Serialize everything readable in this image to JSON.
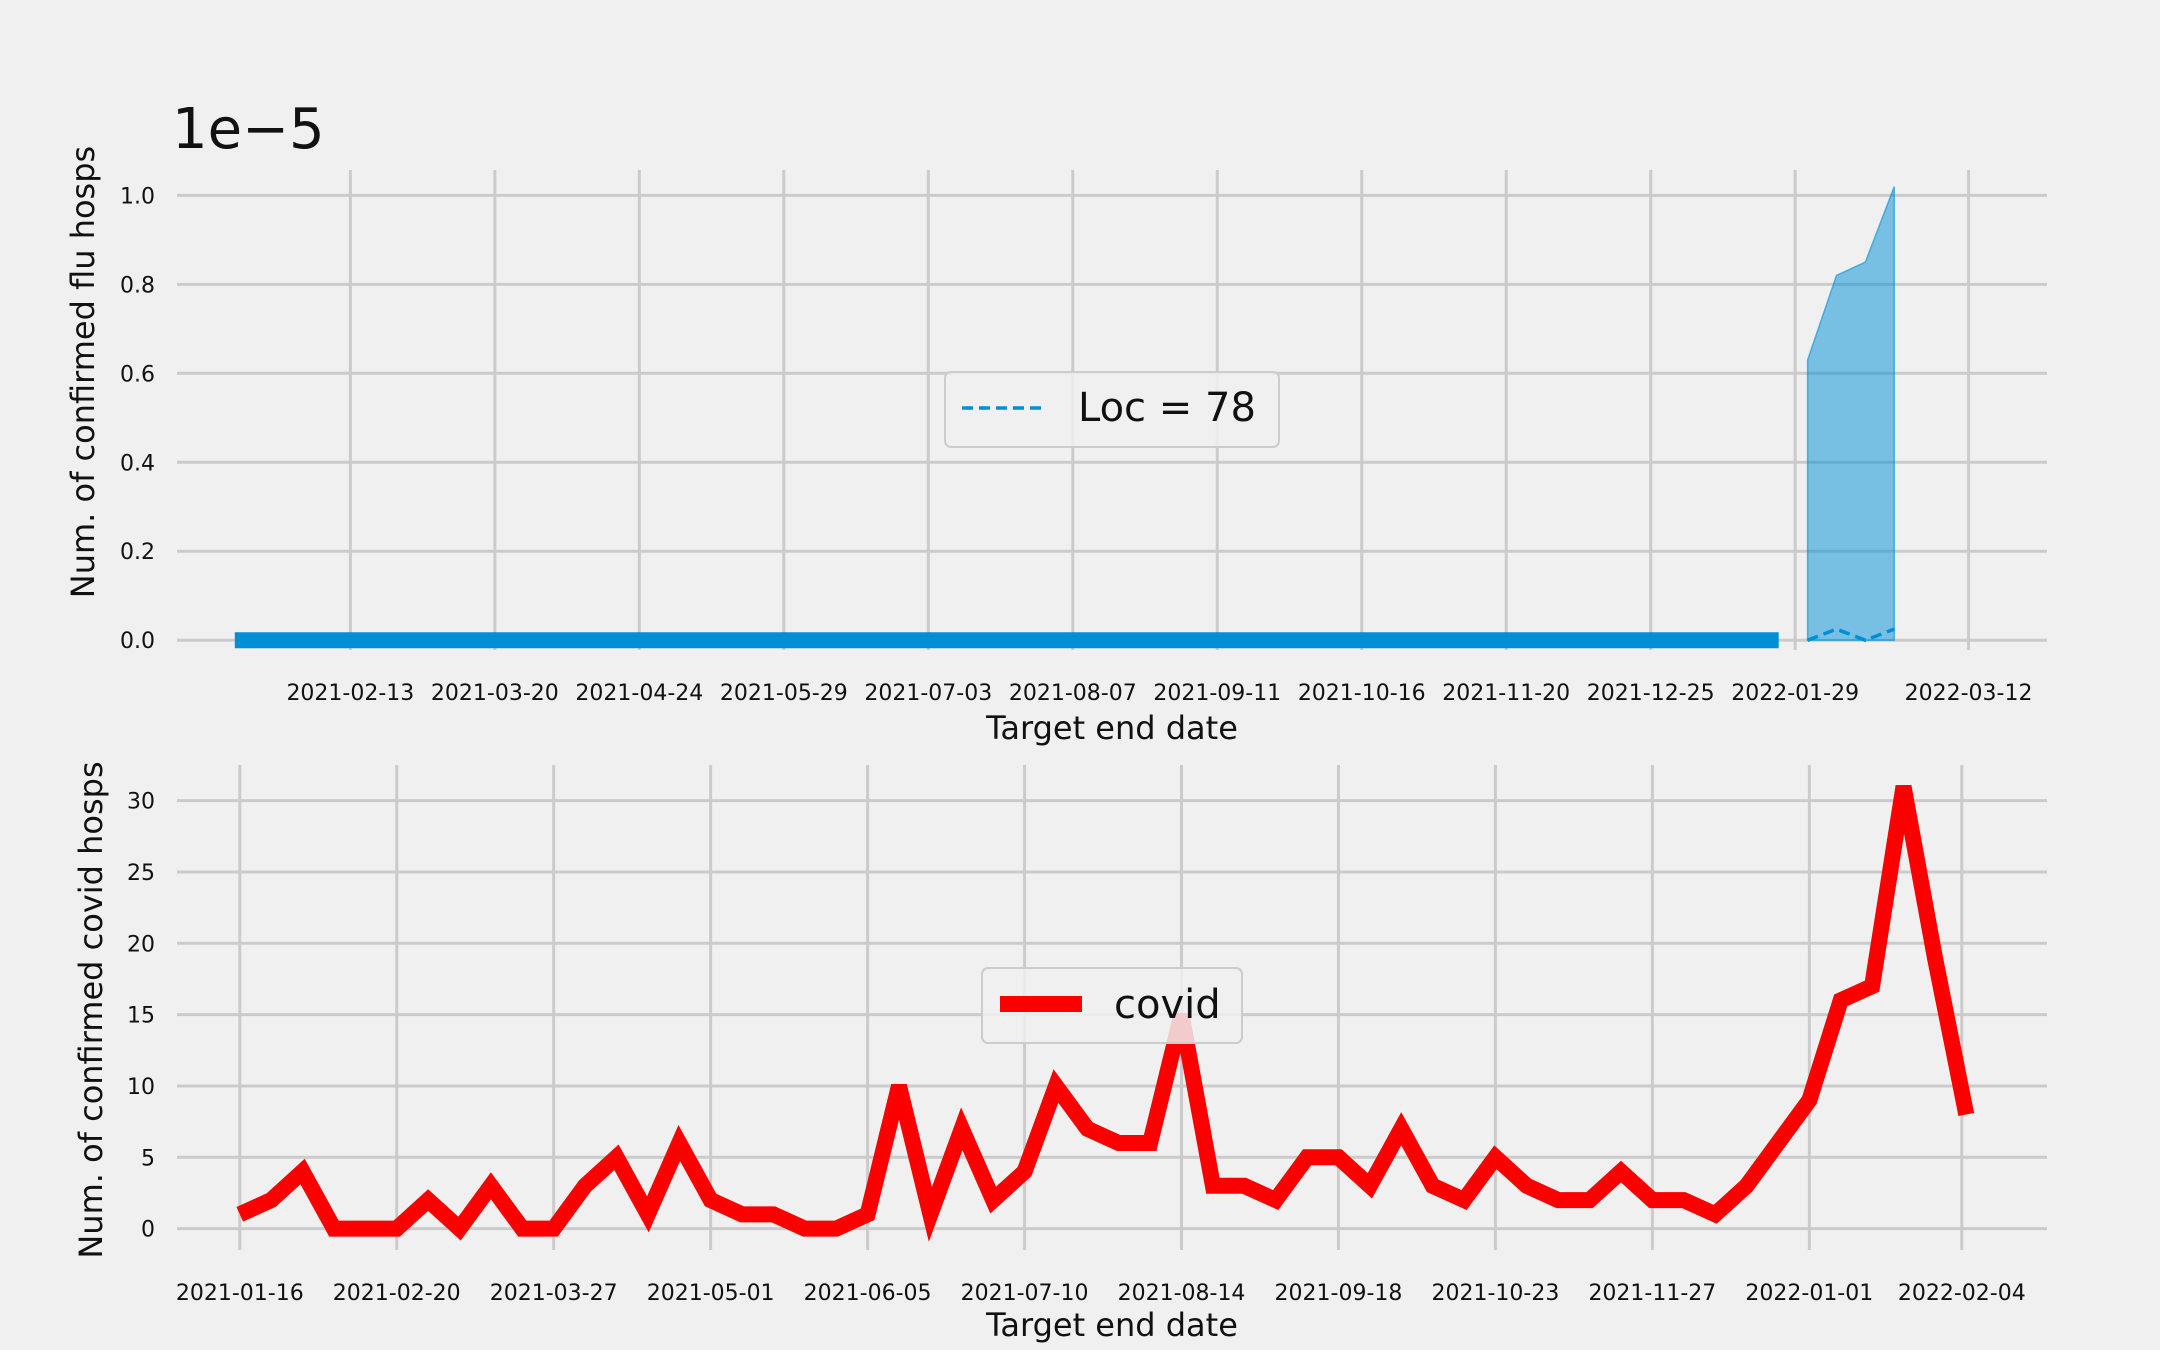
{
  "chart_data": [
    {
      "type": "area",
      "ylabel": "Num. of confirmed flu hosps",
      "xlabel": "Target end date",
      "offset_text": "1e−5",
      "ylim": [
        -2.2e-07,
        1.057e-05
      ],
      "yticks": [
        0,
        2e-06,
        4e-06,
        6e-06,
        8e-06,
        1e-05
      ],
      "ytick_labels": [
        "0.0",
        "0.2",
        "0.4",
        "0.6",
        "0.8",
        "1.0"
      ],
      "xlim": [
        "2021-01-02",
        "2022-03-31"
      ],
      "xticks": [
        "2021-02-13",
        "2021-03-20",
        "2021-04-24",
        "2021-05-29",
        "2021-07-03",
        "2021-08-07",
        "2021-09-11",
        "2021-10-16",
        "2021-11-20",
        "2021-12-25",
        "2022-01-29",
        "2022-03-12"
      ],
      "grid": true,
      "legend": {
        "placement": "center",
        "entries": [
          "Loc = 78"
        ]
      },
      "series": [
        {
          "name": "Loc = 78",
          "kind": "observed",
          "color": "#008fd5",
          "x": [
            "2021-01-16",
            "2022-01-25"
          ],
          "y": [
            0,
            0
          ]
        },
        {
          "kind": "forecast-median",
          "style": "dashed",
          "color": "#008fd5",
          "x": [
            "2022-02-01",
            "2022-02-08",
            "2022-02-15",
            "2022-02-22"
          ],
          "y": [
            0,
            2.5e-07,
            0,
            2.5e-07
          ]
        },
        {
          "kind": "forecast-interval",
          "color": "#008fd5",
          "x": [
            "2022-02-01",
            "2022-02-08",
            "2022-02-15",
            "2022-02-22"
          ],
          "lower": [
            0,
            0,
            0,
            0
          ],
          "upper": [
            6.3e-06,
            8.2e-06,
            8.5e-06,
            1.02e-05
          ]
        }
      ]
    },
    {
      "type": "line",
      "ylabel": "Num. of confirmed covid hosps",
      "xlabel": "Target end date",
      "ylim": [
        -1.5,
        32.5
      ],
      "yticks": [
        0,
        5,
        10,
        15,
        20,
        25,
        30
      ],
      "xlim": [
        "2021-01-02",
        "2022-02-23"
      ],
      "xticks": [
        "2021-01-16",
        "2021-02-20",
        "2021-03-27",
        "2021-05-01",
        "2021-06-05",
        "2021-07-10",
        "2021-08-14",
        "2021-09-18",
        "2021-10-23",
        "2021-11-27",
        "2022-01-01",
        "2022-02-04"
      ],
      "grid": true,
      "legend": {
        "placement": "center",
        "entries": [
          "covid"
        ]
      },
      "series": [
        {
          "name": "covid",
          "color": "#fc0000",
          "x": [
            "2021-01-16",
            "2021-01-23",
            "2021-01-30",
            "2021-02-06",
            "2021-02-13",
            "2021-02-20",
            "2021-02-27",
            "2021-03-06",
            "2021-03-13",
            "2021-03-20",
            "2021-03-27",
            "2021-04-03",
            "2021-04-10",
            "2021-04-17",
            "2021-04-24",
            "2021-05-01",
            "2021-05-08",
            "2021-05-15",
            "2021-05-22",
            "2021-05-29",
            "2021-06-05",
            "2021-06-12",
            "2021-06-19",
            "2021-06-26",
            "2021-07-03",
            "2021-07-10",
            "2021-07-17",
            "2021-07-24",
            "2021-07-31",
            "2021-08-07",
            "2021-08-14",
            "2021-08-21",
            "2021-08-28",
            "2021-09-04",
            "2021-09-11",
            "2021-09-18",
            "2021-09-25",
            "2021-10-02",
            "2021-10-09",
            "2021-10-16",
            "2021-10-23",
            "2021-10-30",
            "2021-11-06",
            "2021-11-13",
            "2021-11-20",
            "2021-11-27",
            "2021-12-04",
            "2021-12-11",
            "2021-12-18",
            "2021-12-25",
            "2022-01-01",
            "2022-01-08",
            "2022-01-15",
            "2022-01-22",
            "2022-01-29",
            "2022-02-05"
          ],
          "y": [
            1,
            2,
            4,
            0,
            0,
            0,
            2,
            0,
            3,
            0,
            0,
            3,
            5,
            1,
            6,
            2,
            1,
            1,
            0,
            0,
            1,
            10,
            1,
            7,
            2,
            4,
            10,
            7,
            6,
            6,
            15,
            3,
            3,
            2,
            5,
            5,
            3,
            7,
            3,
            2,
            5,
            3,
            2,
            2,
            4,
            2,
            2,
            1,
            3,
            6,
            9,
            16,
            17,
            31,
            19,
            8
          ]
        }
      ]
    }
  ]
}
